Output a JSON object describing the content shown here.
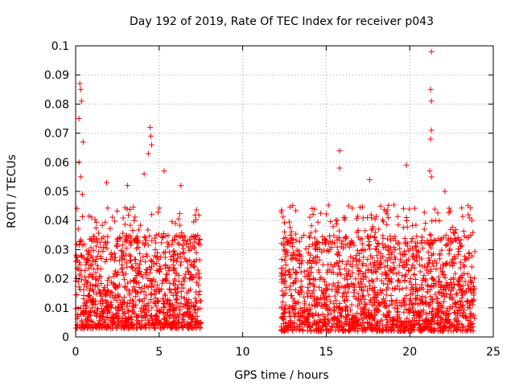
{
  "chart_data": {
    "type": "scatter",
    "title": "Day 192 of 2019, Rate Of TEC Index for receiver p043",
    "xlabel": "GPS time / hours",
    "ylabel": "ROTI / TECUs",
    "xlim": [
      0,
      25
    ],
    "ylim": [
      0,
      0.1
    ],
    "xticks": [
      0,
      5,
      10,
      15,
      20,
      25
    ],
    "xtick_labels": [
      "0",
      "5",
      "10",
      "15",
      "20",
      "25"
    ],
    "yticks": [
      0,
      0.01,
      0.02,
      0.03,
      0.04,
      0.05,
      0.06,
      0.07,
      0.08,
      0.09,
      0.1
    ],
    "ytick_labels": [
      "0",
      "0.01",
      "0.02",
      "0.03",
      "0.04",
      "0.05",
      "0.06",
      "0.07",
      "0.08",
      "0.09",
      "0.1"
    ],
    "grid": true,
    "marker": "+",
    "series_color": "#ff0000",
    "segments": [
      {
        "x_start": 0.0,
        "x_end": 7.5,
        "y_min": 0.003,
        "y_typical_max": 0.035
      },
      {
        "x_start": 12.3,
        "x_end": 23.9,
        "y_min": 0.002,
        "y_typical_max": 0.035
      }
    ],
    "peaks": [
      {
        "x": 0.25,
        "y": 0.087
      },
      {
        "x": 0.3,
        "y": 0.085
      },
      {
        "x": 0.35,
        "y": 0.081
      },
      {
        "x": 0.2,
        "y": 0.075
      },
      {
        "x": 0.45,
        "y": 0.067
      },
      {
        "x": 0.2,
        "y": 0.06
      },
      {
        "x": 0.3,
        "y": 0.055
      },
      {
        "x": 0.4,
        "y": 0.049
      },
      {
        "x": 1.85,
        "y": 0.053
      },
      {
        "x": 3.1,
        "y": 0.052
      },
      {
        "x": 4.45,
        "y": 0.072
      },
      {
        "x": 4.5,
        "y": 0.069
      },
      {
        "x": 4.55,
        "y": 0.066
      },
      {
        "x": 4.35,
        "y": 0.063
      },
      {
        "x": 4.1,
        "y": 0.056
      },
      {
        "x": 5.3,
        "y": 0.057
      },
      {
        "x": 6.3,
        "y": 0.052
      },
      {
        "x": 15.8,
        "y": 0.064
      },
      {
        "x": 15.8,
        "y": 0.058
      },
      {
        "x": 17.6,
        "y": 0.054
      },
      {
        "x": 19.8,
        "y": 0.059
      },
      {
        "x": 21.3,
        "y": 0.098
      },
      {
        "x": 21.25,
        "y": 0.085
      },
      {
        "x": 21.3,
        "y": 0.081
      },
      {
        "x": 21.3,
        "y": 0.071
      },
      {
        "x": 21.25,
        "y": 0.068
      },
      {
        "x": 21.2,
        "y": 0.057
      },
      {
        "x": 21.3,
        "y": 0.055
      },
      {
        "x": 22.1,
        "y": 0.05
      },
      {
        "x": 23.5,
        "y": 0.042
      }
    ]
  }
}
